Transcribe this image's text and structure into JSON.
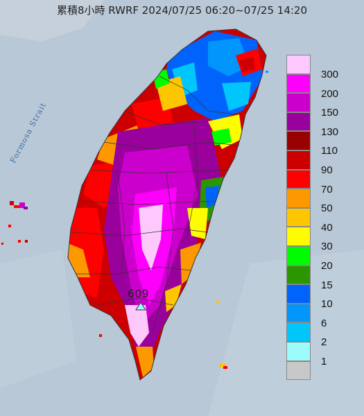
{
  "title": "累積8小時 RWRF 2024/07/25 06:20~07/25 14:20",
  "strait_label": "Formosa Strait",
  "max_value": "609",
  "legend": [
    {
      "color": "#fdc9fd",
      "label": "300"
    },
    {
      "color": "#fc00fc",
      "label": "200"
    },
    {
      "color": "#cc00cc",
      "label": "150"
    },
    {
      "color": "#99009c",
      "label": "130"
    },
    {
      "color": "#990000",
      "label": "110"
    },
    {
      "color": "#cc0000",
      "label": "90"
    },
    {
      "color": "#fd0000",
      "label": "70"
    },
    {
      "color": "#fc9900",
      "label": "50"
    },
    {
      "color": "#fdc600",
      "label": "40"
    },
    {
      "color": "#fdfc00",
      "label": "30"
    },
    {
      "color": "#00fc00",
      "label": "20"
    },
    {
      "color": "#2c9600",
      "label": "15"
    },
    {
      "color": "#0064fc",
      "label": "10"
    },
    {
      "color": "#0096fc",
      "label": "6"
    },
    {
      "color": "#00c6fc",
      "label": "2"
    },
    {
      "color": "#9cfcfc",
      "label": "1"
    },
    {
      "color": "#c8c8c8",
      "label": ""
    }
  ]
}
